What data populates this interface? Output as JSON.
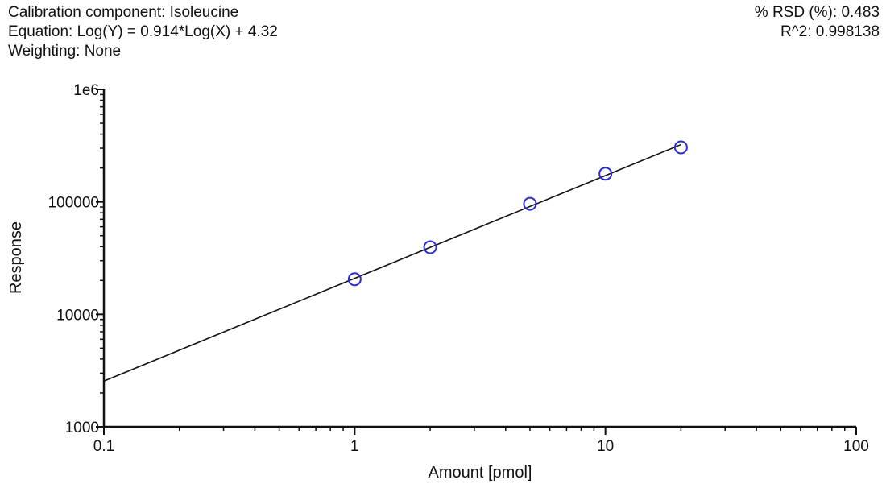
{
  "info": {
    "component": "Calibration component: Isoleucine",
    "equation": "Equation: Log(Y) = 0.914*Log(X) + 4.32",
    "weighting": "Weighting: None",
    "rsd": "% RSD (%): 0.483",
    "r2": "R^2: 0.998138"
  },
  "chart_data": {
    "type": "scatter",
    "title": "Calibration component: Isoleucine",
    "xlabel": "Amount [pmol]",
    "ylabel": "Response",
    "xscale": "log",
    "yscale": "log",
    "xlim": [
      0.1,
      100
    ],
    "ylim": [
      1000,
      1000000
    ],
    "x_ticks": [
      0.1,
      1,
      10,
      100
    ],
    "x_tick_labels": [
      "0.1",
      "1",
      "10",
      "100"
    ],
    "y_ticks": [
      1000,
      10000,
      100000,
      1000000
    ],
    "y_tick_labels": [
      "1000",
      "10000",
      "100000",
      "1e6"
    ],
    "points": {
      "name": "Calibration points",
      "x": [
        1,
        2,
        5,
        10,
        20
      ],
      "y": [
        20500,
        39500,
        96000,
        178000,
        305000
      ]
    },
    "fit": {
      "name": "Log-log linear fit",
      "slope": 0.914,
      "intercept": 4.32,
      "x_range": [
        0.1,
        20
      ]
    },
    "colors": {
      "points": "#2b2bd6",
      "line": "#111111",
      "axis": "#111111"
    }
  }
}
